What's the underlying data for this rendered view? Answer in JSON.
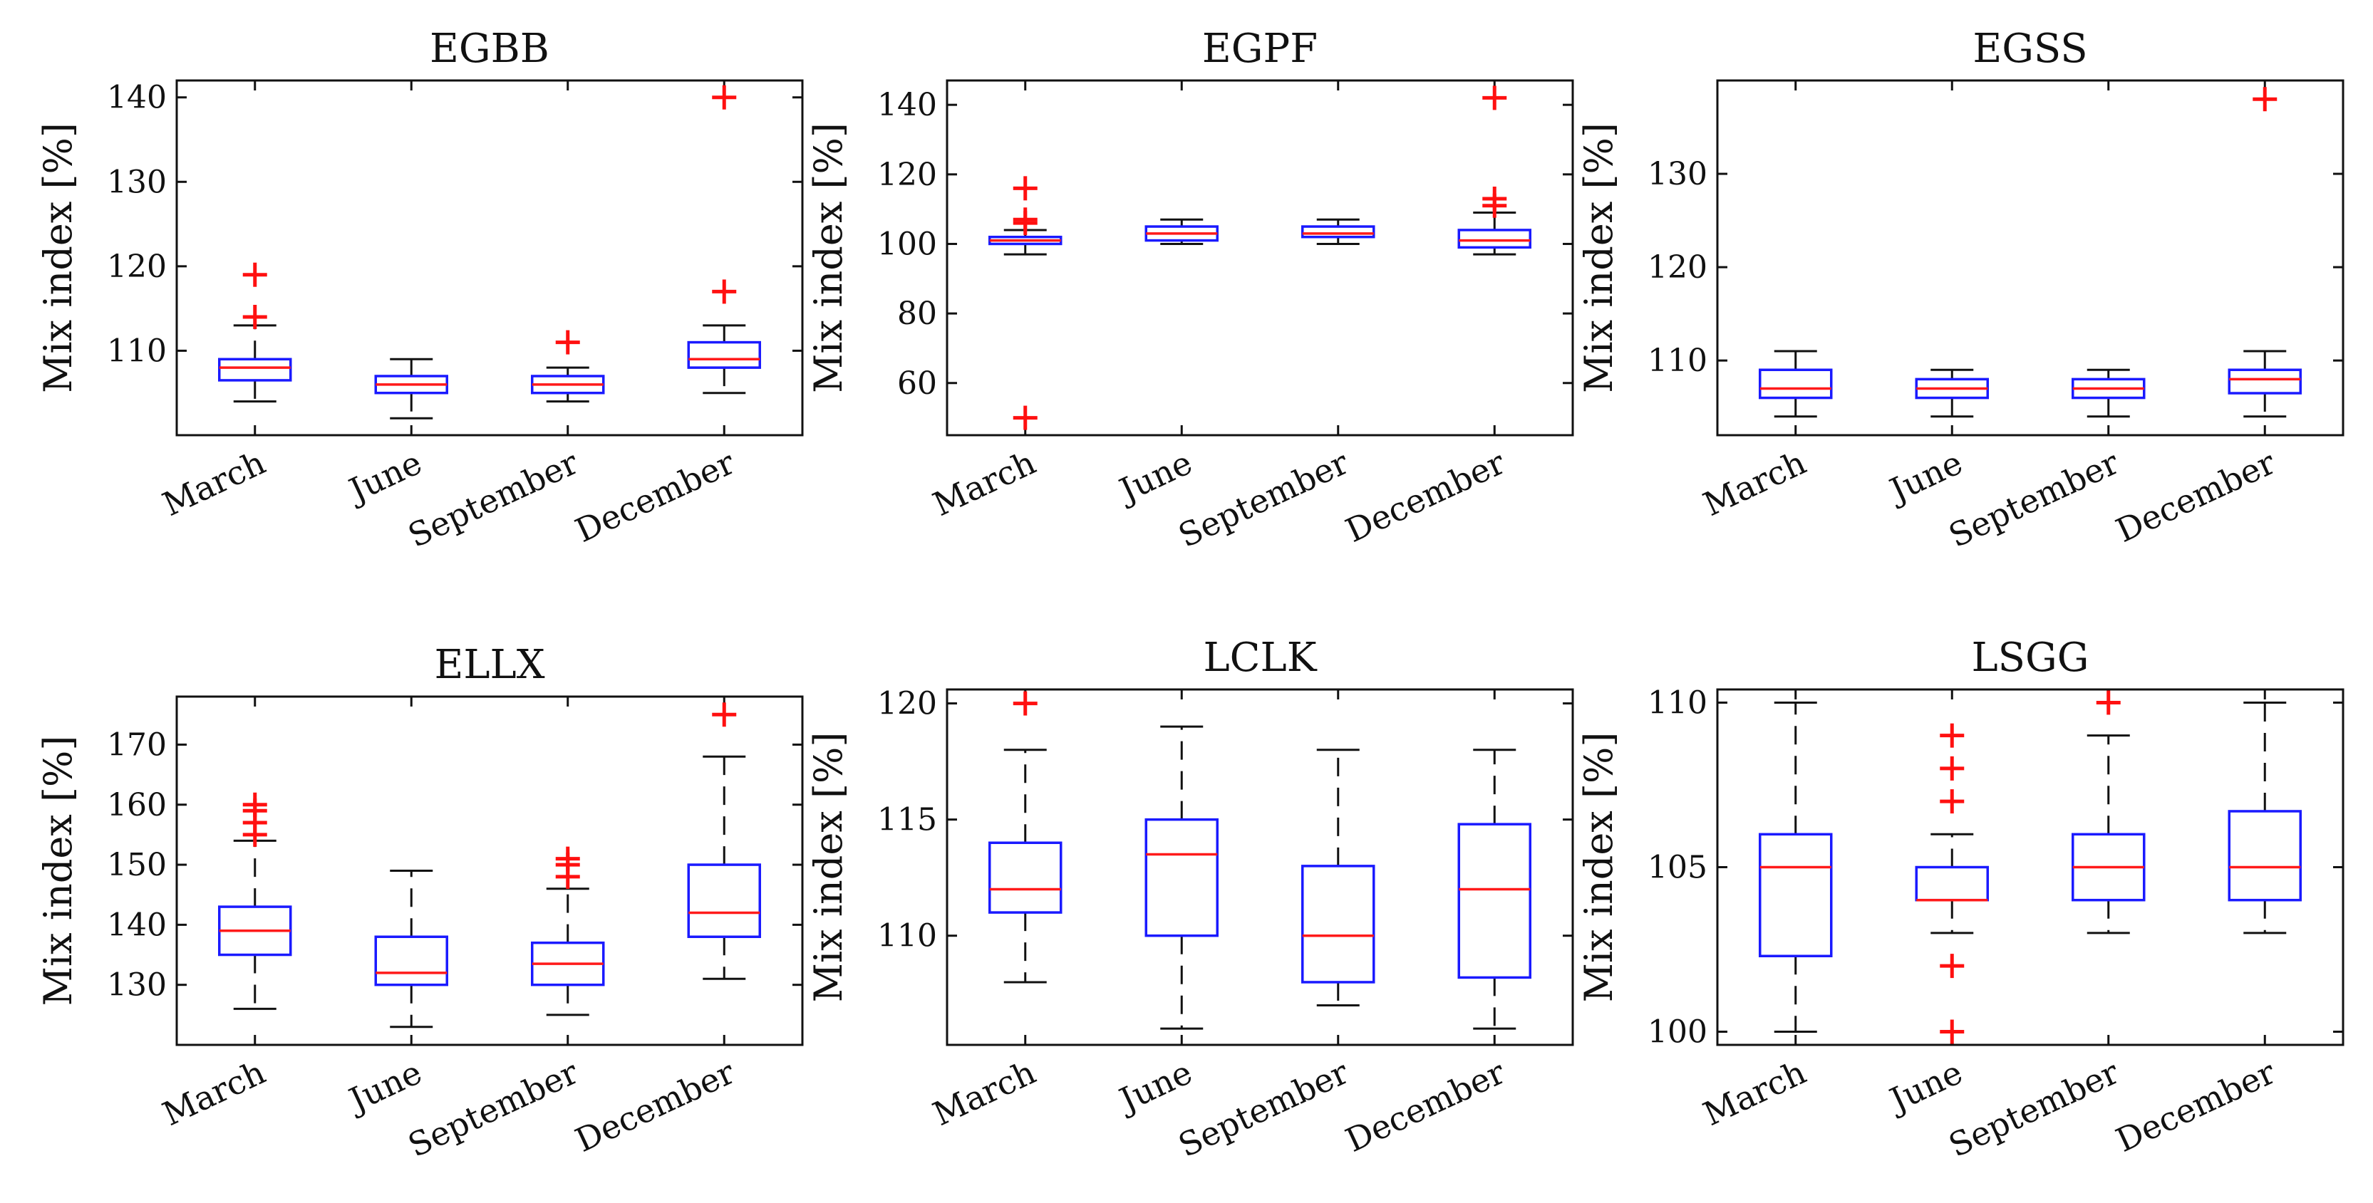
{
  "chart_data": [
    {
      "type": "box",
      "title": "EGBB",
      "ylabel": "Mix index [%]",
      "xlabel": "",
      "categories": [
        "March",
        "June",
        "September",
        "December"
      ],
      "ylim": [
        100,
        142
      ],
      "yticks": [
        110,
        120,
        130,
        140
      ],
      "boxes": [
        {
          "category": "March",
          "min": 104,
          "q1": 106.5,
          "median": 108,
          "q3": 109,
          "max": 113,
          "outliers": [
            114,
            119
          ]
        },
        {
          "category": "June",
          "min": 102,
          "q1": 105,
          "median": 106,
          "q3": 107,
          "max": 109,
          "outliers": []
        },
        {
          "category": "September",
          "min": 104,
          "q1": 105,
          "median": 106,
          "q3": 107,
          "max": 108,
          "outliers": [
            111
          ]
        },
        {
          "category": "December",
          "min": 105,
          "q1": 108,
          "median": 109,
          "q3": 111,
          "max": 113,
          "outliers": [
            117,
            140
          ]
        }
      ]
    },
    {
      "type": "box",
      "title": "EGPF",
      "ylabel": "Mix index [%]",
      "xlabel": "",
      "categories": [
        "March",
        "June",
        "September",
        "December"
      ],
      "ylim": [
        45,
        147
      ],
      "yticks": [
        60,
        80,
        100,
        120,
        140
      ],
      "boxes": [
        {
          "category": "March",
          "min": 97,
          "q1": 100,
          "median": 101,
          "q3": 102,
          "max": 104,
          "outliers": [
            106,
            107,
            116,
            50
          ]
        },
        {
          "category": "June",
          "min": 100,
          "q1": 101,
          "median": 103,
          "q3": 105,
          "max": 107,
          "outliers": []
        },
        {
          "category": "September",
          "min": 100,
          "q1": 102,
          "median": 103,
          "q3": 105,
          "max": 107,
          "outliers": []
        },
        {
          "category": "December",
          "min": 97,
          "q1": 99,
          "median": 101,
          "q3": 104,
          "max": 109,
          "outliers": [
            111,
            113,
            142
          ]
        }
      ]
    },
    {
      "type": "box",
      "title": "EGSS",
      "ylabel": "Mix index [%]",
      "xlabel": "",
      "categories": [
        "March",
        "June",
        "September",
        "December"
      ],
      "ylim": [
        102,
        140
      ],
      "yticks": [
        110,
        120,
        130
      ],
      "boxes": [
        {
          "category": "March",
          "min": 104,
          "q1": 106,
          "median": 107,
          "q3": 109,
          "max": 111,
          "outliers": []
        },
        {
          "category": "June",
          "min": 104,
          "q1": 106,
          "median": 107,
          "q3": 108,
          "max": 109,
          "outliers": []
        },
        {
          "category": "September",
          "min": 104,
          "q1": 106,
          "median": 107,
          "q3": 108,
          "max": 109,
          "outliers": []
        },
        {
          "category": "December",
          "min": 104,
          "q1": 106.5,
          "median": 108,
          "q3": 109,
          "max": 111,
          "outliers": [
            138
          ]
        }
      ]
    },
    {
      "type": "box",
      "title": "ELLX",
      "ylabel": "Mix index [%]",
      "xlabel": "",
      "categories": [
        "March",
        "June",
        "September",
        "December"
      ],
      "ylim": [
        120,
        178
      ],
      "yticks": [
        130,
        140,
        150,
        160,
        170
      ],
      "boxes": [
        {
          "category": "March",
          "min": 126,
          "q1": 135,
          "median": 139,
          "q3": 143,
          "max": 154,
          "outliers": [
            155,
            157,
            159,
            160
          ]
        },
        {
          "category": "June",
          "min": 123,
          "q1": 130,
          "median": 132,
          "q3": 138,
          "max": 149,
          "outliers": []
        },
        {
          "category": "September",
          "min": 125,
          "q1": 130,
          "median": 133.5,
          "q3": 137,
          "max": 146,
          "outliers": [
            148,
            150,
            151
          ]
        },
        {
          "category": "December",
          "min": 131,
          "q1": 138,
          "median": 142,
          "q3": 150,
          "max": 168,
          "outliers": [
            175
          ]
        }
      ]
    },
    {
      "type": "box",
      "title": "LCLK",
      "ylabel": "Mix index [%]",
      "xlabel": "",
      "categories": [
        "March",
        "June",
        "September",
        "December"
      ],
      "ylim": [
        105.3,
        120.6
      ],
      "yticks": [
        110,
        115,
        120
      ],
      "boxes": [
        {
          "category": "March",
          "min": 108,
          "q1": 111,
          "median": 112,
          "q3": 114,
          "max": 118,
          "outliers": [
            120
          ]
        },
        {
          "category": "June",
          "min": 106,
          "q1": 110,
          "median": 113.5,
          "q3": 115,
          "max": 119,
          "outliers": []
        },
        {
          "category": "September",
          "min": 107,
          "q1": 108,
          "median": 110,
          "q3": 113,
          "max": 118,
          "outliers": []
        },
        {
          "category": "December",
          "min": 106,
          "q1": 108.2,
          "median": 112,
          "q3": 114.8,
          "max": 118,
          "outliers": []
        }
      ]
    },
    {
      "type": "box",
      "title": "LSGG",
      "ylabel": "Mix index [%]",
      "xlabel": "",
      "categories": [
        "March",
        "June",
        "September",
        "December"
      ],
      "ylim": [
        99.6,
        110.4
      ],
      "yticks": [
        100,
        105,
        110
      ],
      "boxes": [
        {
          "category": "March",
          "min": 100,
          "q1": 102.3,
          "median": 105,
          "q3": 106,
          "max": 110,
          "outliers": []
        },
        {
          "category": "June",
          "min": 103,
          "q1": 104,
          "median": 104,
          "q3": 105,
          "max": 106,
          "outliers": [
            107,
            108,
            109,
            102,
            100
          ]
        },
        {
          "category": "September",
          "min": 103,
          "q1": 104,
          "median": 105,
          "q3": 106,
          "max": 109,
          "outliers": [
            110
          ]
        },
        {
          "category": "December",
          "min": 103,
          "q1": 104,
          "median": 105,
          "q3": 106.7,
          "max": 110,
          "outliers": []
        }
      ]
    }
  ]
}
